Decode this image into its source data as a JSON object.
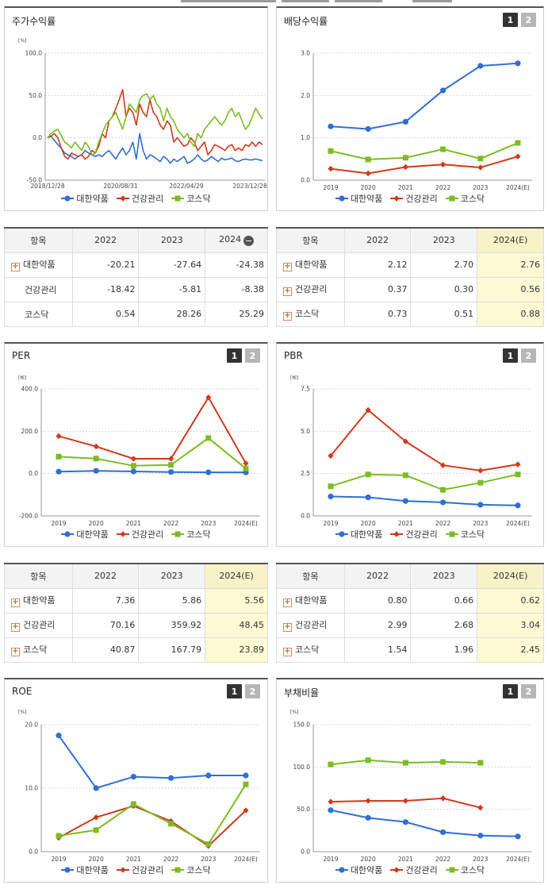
{
  "colors": {
    "series1": "#2f6fd6",
    "series2": "#d13a1b",
    "series3": "#7cbc24"
  },
  "series_names": [
    "대한약품",
    "건강관리",
    "코스닥"
  ],
  "charts": {
    "stock": {
      "title": "주가수익률",
      "unit": "[%]",
      "y_ticks": [
        "100.0",
        "50.0",
        "0.0",
        "-50.0"
      ],
      "x_ticks": [
        "2018/12/28",
        "2020/08/31",
        "2022/04/29",
        "2023/12/28"
      ]
    },
    "dividend": {
      "title": "배당수익률",
      "unit": "",
      "buttons": [
        "1",
        "2"
      ],
      "y_ticks": [
        "3.0",
        "2.0",
        "1.0",
        "0.0"
      ],
      "x_ticks": [
        "2019",
        "2020",
        "2021",
        "2022",
        "2023",
        "2024(E)"
      ]
    },
    "per": {
      "title": "PER",
      "unit": "[배]",
      "buttons": [
        "1",
        "2"
      ],
      "y_ticks": [
        "400.0",
        "200.0",
        "0.0",
        "-200.0"
      ],
      "x_ticks": [
        "2019",
        "2020",
        "2021",
        "2022",
        "2023",
        "2024(E)"
      ]
    },
    "pbr": {
      "title": "PBR",
      "unit": "[배]",
      "buttons": [
        "1",
        "2"
      ],
      "y_ticks": [
        "7.5",
        "5.0",
        "2.5",
        "0.0"
      ],
      "x_ticks": [
        "2019",
        "2020",
        "2021",
        "2022",
        "2023",
        "2024(E)"
      ]
    },
    "roe": {
      "title": "ROE",
      "unit": "[%]",
      "buttons": [
        "1",
        "2"
      ],
      "y_ticks": [
        "20.0",
        "10.0",
        "0.0"
      ],
      "x_ticks": [
        "2019",
        "2020",
        "2021",
        "2022",
        "2023",
        "2024(E)"
      ]
    },
    "debt": {
      "title": "부채비율",
      "unit": "[%]",
      "buttons": [
        "1",
        "2"
      ],
      "y_ticks": [
        "150.0",
        "100.0",
        "50.0",
        "0.0"
      ],
      "x_ticks": [
        "2019",
        "2020",
        "2021",
        "2022",
        "2023",
        "2024(E)"
      ]
    }
  },
  "tables": {
    "stock": {
      "headers": [
        "항목",
        "2022",
        "2023",
        "2024"
      ],
      "rows": [
        {
          "name": "대한약품",
          "values": [
            "-20.21",
            "-27.64",
            "-24.38"
          ]
        },
        {
          "name": "건강관리",
          "values": [
            "-18.42",
            "-5.81",
            "-8.38"
          ]
        },
        {
          "name": "코스닥",
          "values": [
            "0.54",
            "28.26",
            "25.29"
          ]
        }
      ]
    },
    "dividend": {
      "headers": [
        "항목",
        "2022",
        "2023",
        "2024(E)"
      ],
      "rows": [
        {
          "name": "대한약품",
          "values": [
            "2.12",
            "2.70",
            "2.76"
          ]
        },
        {
          "name": "건강관리",
          "values": [
            "0.37",
            "0.30",
            "0.56"
          ]
        },
        {
          "name": "코스닥",
          "values": [
            "0.73",
            "0.51",
            "0.88"
          ]
        }
      ]
    },
    "per": {
      "headers": [
        "항목",
        "2022",
        "2023",
        "2024(E)"
      ],
      "rows": [
        {
          "name": "대한약품",
          "values": [
            "7.36",
            "5.86",
            "5.56"
          ]
        },
        {
          "name": "건강관리",
          "values": [
            "70.16",
            "359.92",
            "48.45"
          ]
        },
        {
          "name": "코스닥",
          "values": [
            "40.87",
            "167.79",
            "23.89"
          ]
        }
      ]
    },
    "pbr": {
      "headers": [
        "항목",
        "2022",
        "2023",
        "2024(E)"
      ],
      "rows": [
        {
          "name": "대한약품",
          "values": [
            "0.80",
            "0.66",
            "0.62"
          ]
        },
        {
          "name": "건강관리",
          "values": [
            "2.99",
            "2.68",
            "3.04"
          ]
        },
        {
          "name": "코스닥",
          "values": [
            "1.54",
            "1.96",
            "2.45"
          ]
        }
      ]
    }
  },
  "chart_data": [
    {
      "type": "line",
      "title": "주가수익률",
      "ylabel": "[%]",
      "ylim": [
        -50,
        100
      ],
      "x_range": [
        "2018/12/28",
        "2024"
      ],
      "tick_labels": [
        "2018/12/28",
        "2020/08/31",
        "2022/04/29",
        "2023/12/28"
      ],
      "series": [
        {
          "name": "대한약품",
          "values": [
            0,
            2,
            -3,
            -8,
            -12,
            -18,
            -20,
            -22,
            -25,
            -22,
            -20,
            -15,
            -18,
            -20,
            -22,
            -20,
            -22,
            -18,
            -15,
            -20,
            -25,
            -18,
            -12,
            -20,
            -15,
            -5,
            -25,
            5,
            -15,
            -25,
            -20,
            -22,
            -25,
            -28,
            -22,
            -25,
            -30,
            -25,
            -28,
            -25,
            -22,
            -30,
            -28,
            -25,
            -20,
            -25,
            -28,
            -26,
            -22,
            -25,
            -28,
            -24,
            -26,
            -25,
            -24,
            -27,
            -28,
            -26,
            -25,
            -26,
            -26,
            -25,
            -26,
            -27
          ]
        },
        {
          "name": "건강관리",
          "values": [
            0,
            2,
            5,
            0,
            -12,
            -22,
            -25,
            -18,
            -20,
            -22,
            -20,
            -25,
            -22,
            -15,
            -18,
            -10,
            5,
            0,
            20,
            25,
            35,
            45,
            57,
            25,
            35,
            30,
            15,
            40,
            30,
            25,
            45,
            30,
            25,
            15,
            10,
            20,
            15,
            -5,
            0,
            -5,
            -10,
            -8,
            0,
            -5,
            -15,
            -10,
            -5,
            -20,
            -15,
            -8,
            -10,
            -12,
            -15,
            -10,
            -8,
            -15,
            -12,
            -15,
            -8,
            -10,
            -5,
            -10,
            -5,
            -8
          ]
        },
        {
          "name": "코스닥",
          "values": [
            0,
            5,
            8,
            10,
            3,
            -5,
            -8,
            -12,
            -5,
            -10,
            -15,
            -5,
            -10,
            -20,
            -18,
            -5,
            5,
            15,
            20,
            25,
            30,
            20,
            10,
            25,
            40,
            35,
            30,
            45,
            50,
            52,
            45,
            50,
            40,
            35,
            20,
            35,
            25,
            20,
            10,
            5,
            0,
            5,
            -5,
            -10,
            5,
            0,
            10,
            15,
            20,
            25,
            20,
            15,
            20,
            30,
            35,
            25,
            30,
            20,
            10,
            15,
            25,
            35,
            28,
            22
          ]
        }
      ]
    },
    {
      "type": "line",
      "title": "배당수익률",
      "ylim": [
        0,
        3
      ],
      "categories": [
        "2019",
        "2020",
        "2021",
        "2022",
        "2023",
        "2024(E)"
      ],
      "series": [
        {
          "name": "대한약품",
          "values": [
            1.27,
            1.21,
            1.38,
            2.12,
            2.7,
            2.76
          ]
        },
        {
          "name": "건강관리",
          "values": [
            0.27,
            0.16,
            0.31,
            0.37,
            0.3,
            0.56
          ]
        },
        {
          "name": "코스닥",
          "values": [
            0.69,
            0.49,
            0.53,
            0.73,
            0.51,
            0.88
          ]
        }
      ]
    },
    {
      "type": "line",
      "title": "PER",
      "ylabel": "[배]",
      "ylim": [
        -200,
        400
      ],
      "categories": [
        "2019",
        "2020",
        "2021",
        "2022",
        "2023",
        "2024(E)"
      ],
      "series": [
        {
          "name": "대한약품",
          "values": [
            9,
            13,
            10,
            7.36,
            5.86,
            5.56
          ]
        },
        {
          "name": "건강관리",
          "values": [
            177,
            128,
            70,
            70.16,
            359.92,
            48.45
          ]
        },
        {
          "name": "코스닥",
          "values": [
            80,
            71,
            37,
            40.87,
            167.79,
            23.89
          ]
        }
      ]
    },
    {
      "type": "line",
      "title": "PBR",
      "ylabel": "[배]",
      "ylim": [
        0,
        7.5
      ],
      "categories": [
        "2019",
        "2020",
        "2021",
        "2022",
        "2023",
        "2024(E)"
      ],
      "series": [
        {
          "name": "대한약품",
          "values": [
            1.15,
            1.1,
            0.88,
            0.8,
            0.66,
            0.62
          ]
        },
        {
          "name": "건강관리",
          "values": [
            3.55,
            6.25,
            4.4,
            2.99,
            2.68,
            3.04
          ]
        },
        {
          "name": "코스닥",
          "values": [
            1.75,
            2.45,
            2.4,
            1.54,
            1.96,
            2.45
          ]
        }
      ]
    },
    {
      "type": "line",
      "title": "ROE",
      "ylabel": "[%]",
      "ylim": [
        0,
        20
      ],
      "categories": [
        "2019",
        "2020",
        "2021",
        "2022",
        "2023",
        "2024(E)"
      ],
      "series": [
        {
          "name": "대한약품",
          "values": [
            18.3,
            10.0,
            11.8,
            11.6,
            12.0,
            12.0
          ]
        },
        {
          "name": "건강관리",
          "values": [
            2.2,
            5.4,
            7.2,
            4.8,
            0.9,
            6.5
          ]
        },
        {
          "name": "코스닥",
          "values": [
            2.5,
            3.4,
            7.5,
            4.4,
            1.2,
            10.6
          ]
        }
      ]
    },
    {
      "type": "line",
      "title": "부채비율",
      "ylabel": "[%]",
      "ylim": [
        0,
        150
      ],
      "categories": [
        "2019",
        "2020",
        "2021",
        "2022",
        "2023",
        "2024(E)"
      ],
      "series": [
        {
          "name": "대한약품",
          "values": [
            49,
            40,
            35,
            23,
            19,
            18
          ]
        },
        {
          "name": "건강관리",
          "values": [
            59,
            60,
            60,
            63,
            52,
            null
          ]
        },
        {
          "name": "코스닥",
          "values": [
            103,
            108,
            105,
            106,
            105,
            null
          ]
        }
      ]
    }
  ]
}
